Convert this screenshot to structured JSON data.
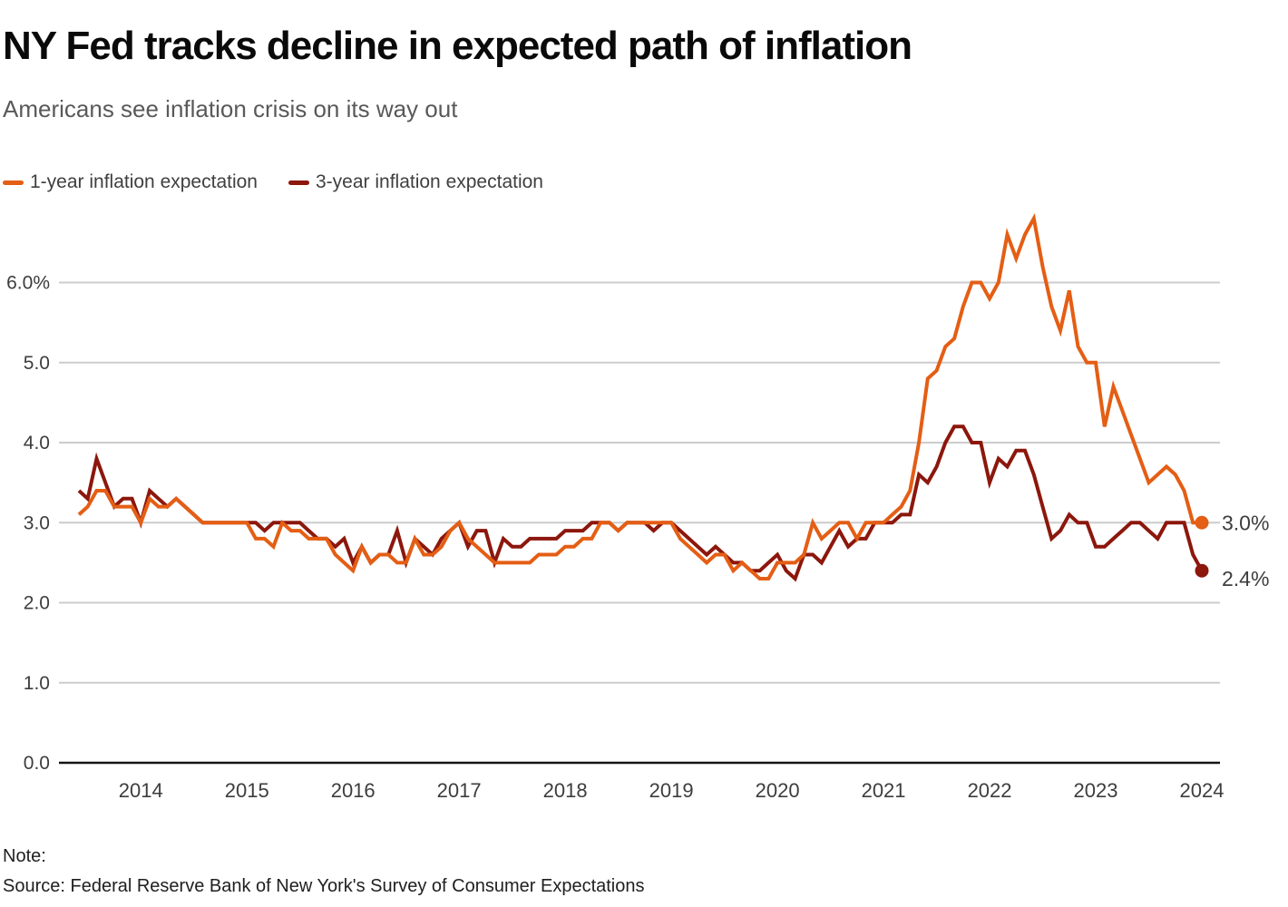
{
  "title": "NY Fed tracks decline in expected path of inflation",
  "subtitle": "Americans see inflation crisis on its way out",
  "legend": [
    {
      "label": "1-year inflation expectation",
      "color": "#E45E14"
    },
    {
      "label": "3-year inflation expectation",
      "color": "#8C170C"
    }
  ],
  "footer": {
    "note_label": "Note:",
    "source": "Source: Federal Reserve Bank of New York's Survey of Consumer Expectations"
  },
  "chart_data": {
    "type": "line",
    "title": "NY Fed tracks decline in expected path of inflation",
    "subtitle": "Americans see inflation crisis on its way out",
    "x_start": "2013-06",
    "x_end": "2024-01",
    "frequency": "monthly",
    "grid": "horizontal",
    "legend_position": "top",
    "ylim": [
      0,
      6.85
    ],
    "colors": {
      "grid": "#cccccc",
      "axis": "#141414",
      "tick_text": "#3d3d3d"
    },
    "y_ticks": [
      {
        "label": "6.0%",
        "value": 6
      },
      {
        "label": "5.0",
        "value": 5
      },
      {
        "label": "4.0",
        "value": 4
      },
      {
        "label": "3.0",
        "value": 3
      },
      {
        "label": "2.0",
        "value": 2
      },
      {
        "label": "1.0",
        "value": 1
      },
      {
        "label": "0.0",
        "value": 0
      }
    ],
    "x_ticks": [
      {
        "label": "2014",
        "month_index": 7
      },
      {
        "label": "2015",
        "month_index": 19
      },
      {
        "label": "2016",
        "month_index": 31
      },
      {
        "label": "2017",
        "month_index": 43
      },
      {
        "label": "2018",
        "month_index": 55
      },
      {
        "label": "2019",
        "month_index": 67
      },
      {
        "label": "2020",
        "month_index": 79
      },
      {
        "label": "2021",
        "month_index": 91
      },
      {
        "label": "2022",
        "month_index": 103
      },
      {
        "label": "2023",
        "month_index": 115
      },
      {
        "label": "2024",
        "month_index": 127
      }
    ],
    "series": [
      {
        "name": "3-year inflation expectation",
        "color": "#8C170C",
        "end_label": "2.4%",
        "values": [
          3.4,
          3.3,
          3.8,
          3.5,
          3.2,
          3.3,
          3.3,
          3.0,
          3.4,
          3.3,
          3.2,
          3.3,
          3.2,
          3.1,
          3.0,
          3.0,
          3.0,
          3.0,
          3.0,
          3.0,
          3.0,
          2.9,
          3.0,
          3.0,
          3.0,
          3.0,
          2.9,
          2.8,
          2.8,
          2.7,
          2.8,
          2.5,
          2.7,
          2.5,
          2.6,
          2.6,
          2.9,
          2.5,
          2.8,
          2.7,
          2.6,
          2.8,
          2.9,
          3.0,
          2.7,
          2.9,
          2.9,
          2.5,
          2.8,
          2.7,
          2.7,
          2.8,
          2.8,
          2.8,
          2.8,
          2.9,
          2.9,
          2.9,
          3.0,
          3.0,
          3.0,
          2.9,
          3.0,
          3.0,
          3.0,
          2.9,
          3.0,
          3.0,
          2.9,
          2.8,
          2.7,
          2.6,
          2.7,
          2.6,
          2.5,
          2.5,
          2.4,
          2.4,
          2.5,
          2.6,
          2.4,
          2.3,
          2.6,
          2.6,
          2.5,
          2.7,
          2.9,
          2.7,
          2.8,
          2.8,
          3.0,
          3.0,
          3.0,
          3.1,
          3.1,
          3.6,
          3.5,
          3.7,
          4.0,
          4.2,
          4.2,
          4.0,
          4.0,
          3.5,
          3.8,
          3.7,
          3.9,
          3.9,
          3.6,
          3.2,
          2.8,
          2.9,
          3.1,
          3.0,
          3.0,
          2.7,
          2.7,
          2.8,
          2.9,
          3.0,
          3.0,
          2.9,
          2.8,
          3.0,
          3.0,
          3.0,
          2.6,
          2.4
        ]
      },
      {
        "name": "1-year inflation expectation",
        "color": "#E45E14",
        "end_label": "3.0%",
        "values": [
          3.1,
          3.2,
          3.4,
          3.4,
          3.2,
          3.2,
          3.2,
          3.0,
          3.3,
          3.2,
          3.2,
          3.3,
          3.2,
          3.1,
          3.0,
          3.0,
          3.0,
          3.0,
          3.0,
          3.0,
          2.8,
          2.8,
          2.7,
          3.0,
          2.9,
          2.9,
          2.8,
          2.8,
          2.8,
          2.6,
          2.5,
          2.4,
          2.7,
          2.5,
          2.6,
          2.6,
          2.5,
          2.5,
          2.8,
          2.6,
          2.6,
          2.7,
          2.9,
          3.0,
          2.8,
          2.7,
          2.6,
          2.5,
          2.5,
          2.5,
          2.5,
          2.5,
          2.6,
          2.6,
          2.6,
          2.7,
          2.7,
          2.8,
          2.8,
          3.0,
          3.0,
          2.9,
          3.0,
          3.0,
          3.0,
          3.0,
          3.0,
          3.0,
          2.8,
          2.7,
          2.6,
          2.5,
          2.6,
          2.6,
          2.4,
          2.5,
          2.4,
          2.3,
          2.3,
          2.5,
          2.5,
          2.5,
          2.6,
          3.0,
          2.8,
          2.9,
          3.0,
          3.0,
          2.8,
          3.0,
          3.0,
          3.0,
          3.1,
          3.2,
          3.4,
          4.0,
          4.8,
          4.9,
          5.2,
          5.3,
          5.7,
          6.0,
          6.0,
          5.8,
          6.0,
          6.6,
          6.3,
          6.6,
          6.8,
          6.2,
          5.7,
          5.4,
          5.9,
          5.2,
          5.0,
          5.0,
          4.2,
          4.7,
          4.4,
          4.1,
          3.8,
          3.5,
          3.6,
          3.7,
          3.6,
          3.4,
          3.0,
          3.0
        ]
      }
    ]
  }
}
